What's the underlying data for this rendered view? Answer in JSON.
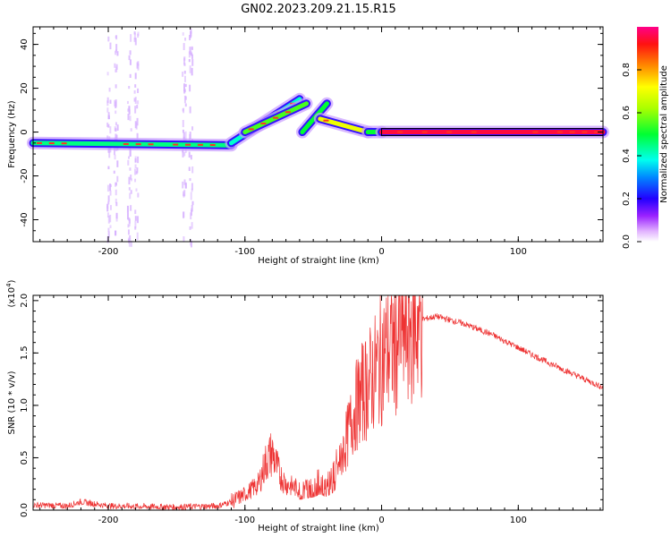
{
  "title": "GN02.2023.209.21.15.R15",
  "chart_data": [
    {
      "type": "heatmap",
      "xlabel": "Height of straight line (km)",
      "ylabel": "Frequency (Hz)",
      "xlim": [
        -255,
        162
      ],
      "ylim": [
        -50,
        48
      ],
      "xticks": [
        -200,
        -100,
        0,
        100
      ],
      "yticks": [
        -40,
        -20,
        0,
        20,
        40
      ],
      "colorbar": {
        "label": "Normalized spectral amplitude",
        "range": [
          0.0,
          1.0
        ],
        "ticks": [
          0.0,
          0.2,
          0.4,
          0.6,
          0.8
        ],
        "tick_labels": [
          "0.0",
          "0.2",
          "0.4",
          "0.6",
          "0.8"
        ]
      },
      "band_segments": [
        {
          "x": [
            -255,
            -110
          ],
          "y": [
            -5,
            -6
          ],
          "amplitude": 0.45
        },
        {
          "x": [
            -110,
            -60
          ],
          "y": [
            -5,
            15
          ],
          "amplitude": 0.4
        },
        {
          "x": [
            -100,
            -55
          ],
          "y": [
            0,
            13
          ],
          "amplitude": 0.55
        },
        {
          "x": [
            -58,
            -40
          ],
          "y": [
            0,
            13
          ],
          "amplitude": 0.5
        },
        {
          "x": [
            -45,
            -10
          ],
          "y": [
            6,
            0
          ],
          "amplitude": 0.7
        },
        {
          "x": [
            -10,
            0
          ],
          "y": [
            0,
            0
          ],
          "amplitude": 0.5
        },
        {
          "x": [
            0,
            162
          ],
          "y": [
            0,
            0
          ],
          "amplitude": 0.95
        }
      ]
    },
    {
      "type": "line",
      "xlabel": "Height of straight line (km)",
      "ylabel": "SNR (10 * v/v)",
      "y_scale_label": "(x10",
      "y_scale_exp": "4",
      "y_scale_close": ")",
      "xlim": [
        -255,
        162
      ],
      "ylim": [
        0,
        2.05
      ],
      "xticks": [
        -200,
        -100,
        0,
        100
      ],
      "yticks": [
        0.0,
        0.5,
        1.0,
        1.5,
        2.0
      ],
      "ytick_labels": [
        "0.0",
        "0.5",
        "1.0",
        "1.5",
        "2.0"
      ],
      "color": "#ee3333",
      "series": [
        {
          "x": [
            -255,
            -230,
            -220,
            -200,
            -150,
            -120,
            -110,
            -100,
            -90,
            -85,
            -80,
            -75,
            -70,
            -60,
            -50,
            -45,
            -40,
            -35,
            -30,
            -25,
            -20,
            -15,
            -10,
            -5,
            0,
            10,
            20,
            30,
            40,
            60,
            80,
            100,
            120,
            140,
            162
          ],
          "y": [
            0.05,
            0.04,
            0.08,
            0.04,
            0.03,
            0.04,
            0.08,
            0.15,
            0.25,
            0.45,
            0.55,
            0.35,
            0.25,
            0.2,
            0.25,
            0.3,
            0.25,
            0.35,
            0.5,
            0.7,
            0.95,
            1.1,
            1.2,
            1.3,
            1.45,
            1.6,
            1.75,
            1.82,
            1.85,
            1.78,
            1.68,
            1.55,
            1.42,
            1.3,
            1.17
          ]
        }
      ]
    }
  ]
}
